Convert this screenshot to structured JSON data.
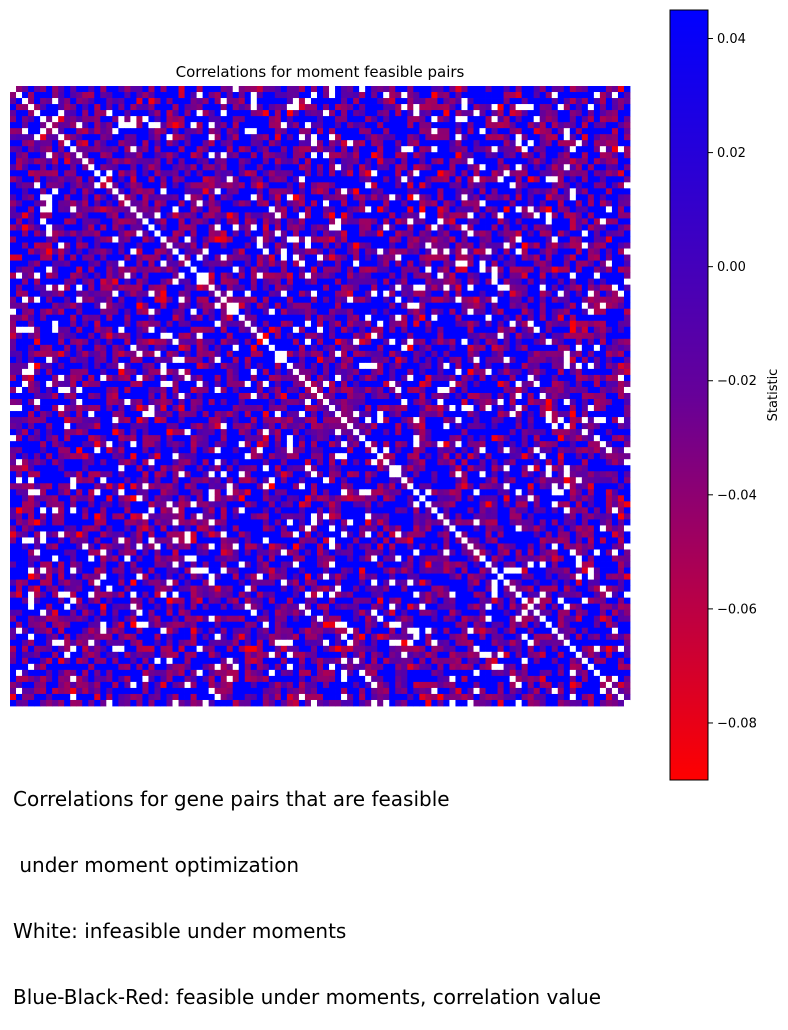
{
  "chart_data": {
    "type": "heatmap",
    "title": "Correlations for moment feasible pairs",
    "colorbar": {
      "label": "Statistic",
      "vmin": -0.09,
      "vmax": 0.045,
      "ticks": [
        0.04,
        0.02,
        0.0,
        -0.02,
        -0.04,
        -0.06,
        -0.08
      ],
      "tick_labels": [
        "0.04",
        "0.02",
        "0.00",
        "−0.02",
        "−0.04",
        "−0.06",
        "−0.08"
      ],
      "colormap": [
        "#ff0000",
        "#660099",
        "#0000ff"
      ]
    },
    "matrix_size": 103,
    "infeasible_color": "#ffffff",
    "diagonal": "infeasible",
    "xticks": [],
    "yticks": []
  },
  "caption": {
    "lines": [
      "Correlations for gene pairs that are feasible",
      " under moment optimization",
      "White: infeasible under moments",
      "Blue-Black-Red: feasible under moments, correlation value"
    ]
  }
}
